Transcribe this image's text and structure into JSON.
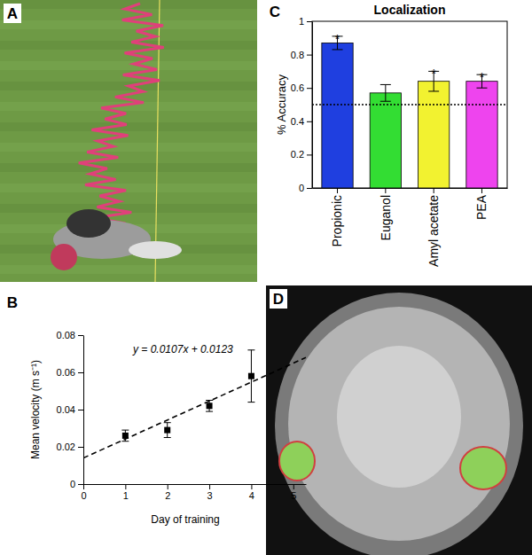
{
  "chart_data": [
    {
      "type": "scatter",
      "panel_label": "B",
      "x_label": "Day of training",
      "y_label": "Mean velocity (m s⁻¹)",
      "annotations": [
        "y = 0.0107x + 0.0123"
      ],
      "xlim": [
        0,
        5.3
      ],
      "xticks": [
        0,
        1,
        2,
        3,
        4,
        5
      ],
      "ylim": [
        0,
        0.08
      ],
      "yticks": [
        0,
        0.02,
        0.04,
        0.06,
        0.08
      ],
      "series": [
        {
          "type": "scatter",
          "marker": "square",
          "color": "#000000",
          "x": [
            1,
            2,
            3,
            4
          ],
          "values": [
            0.026,
            0.029,
            0.042,
            0.058
          ],
          "errors": [
            0.003,
            0.004,
            0.003,
            0.014
          ]
        },
        {
          "type": "line",
          "line_style": "dashed",
          "color": "#000000",
          "x": [
            0,
            5.3
          ],
          "values": [
            0.014,
            0.068
          ]
        }
      ]
    },
    {
      "type": "bar",
      "panel_label": "C",
      "title": "Localization",
      "y_label": "% Accuracy",
      "categories": [
        "Propionic",
        "Euganol",
        "Amyl acetate",
        "PEA"
      ],
      "values": [
        0.87,
        0.57,
        0.64,
        0.64
      ],
      "errors": [
        0.04,
        0.05,
        0.06,
        0.04
      ],
      "colors": [
        "#1f3fe0",
        "#33dd33",
        "#f2f230",
        "#ee44ee"
      ],
      "ylim": [
        0,
        1
      ],
      "yticks": [
        0,
        0.2,
        0.4,
        0.6,
        0.8,
        1
      ],
      "reference_line": 0.5,
      "significance_marks": [
        "*",
        null,
        "*",
        "*"
      ]
    }
  ],
  "images": [
    {
      "panel_label": "A"
    },
    {
      "panel_label": "D"
    }
  ]
}
